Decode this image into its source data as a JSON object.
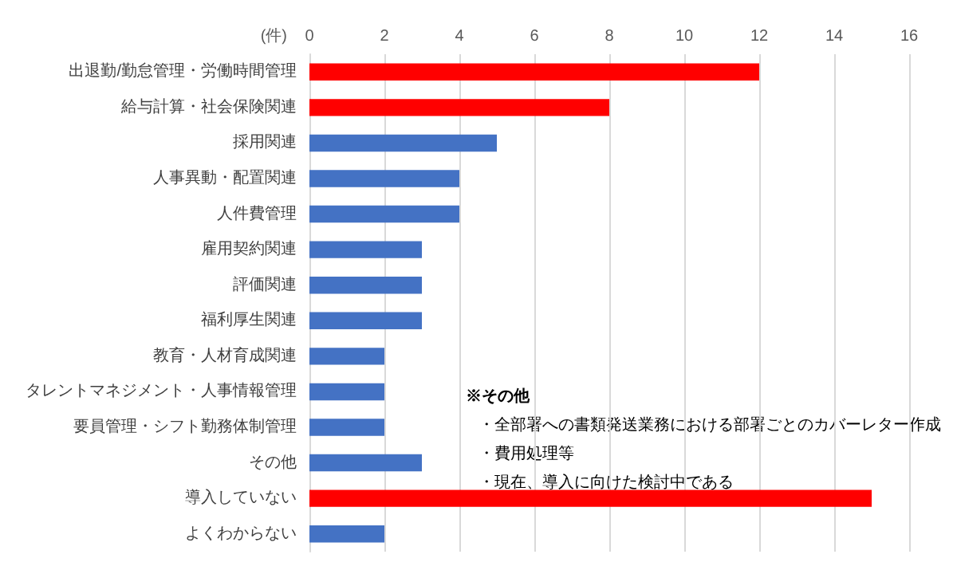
{
  "chart_data": {
    "type": "bar",
    "orientation": "horizontal",
    "xlabel": "(件)",
    "categories": [
      "出退勤/勤怠管理・労働時間管理",
      "給与計算・社会保険関連",
      "採用関連",
      "人事異動・配置関連",
      "人件費管理",
      "雇用契約関連",
      "評価関連",
      "福利厚生関連",
      "教育・人材育成関連",
      "タレントマネジメント・人事情報管理",
      "要員管理・シフト勤務体制管理",
      "その他",
      "導入していない",
      "よくわからない"
    ],
    "values": [
      12,
      8,
      5,
      4,
      4,
      3,
      3,
      3,
      2,
      2,
      2,
      3,
      15,
      2
    ],
    "colors": [
      "#ff0000",
      "#ff0000",
      "#4472c4",
      "#4472c4",
      "#4472c4",
      "#4472c4",
      "#4472c4",
      "#4472c4",
      "#4472c4",
      "#4472c4",
      "#4472c4",
      "#4472c4",
      "#ff0000",
      "#4472c4"
    ],
    "xlim": [
      0,
      16
    ],
    "xticks": [
      0,
      2,
      4,
      6,
      8,
      10,
      12,
      14,
      16
    ],
    "grid": "x",
    "annotations": [
      "※その他",
      "・全部署への書類発送業務における部署ごとのカバーレター作成",
      "・費用処理等",
      "・現在、導入に向けた検討中である"
    ]
  }
}
